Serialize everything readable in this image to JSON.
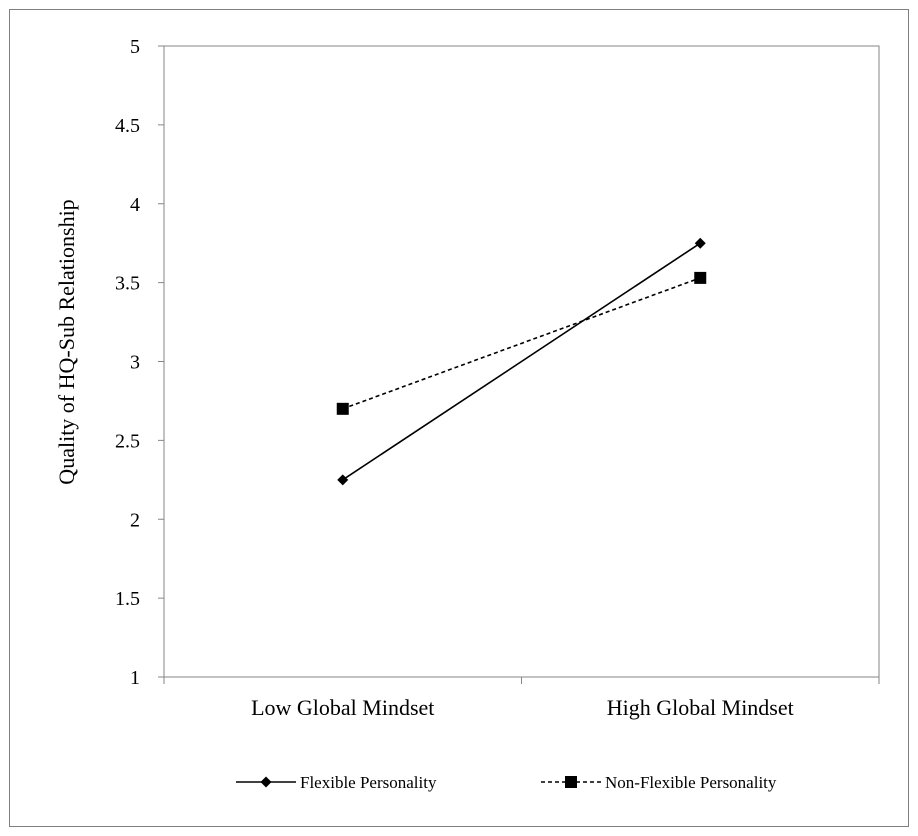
{
  "chart_data": {
    "type": "line",
    "title": "",
    "xlabel": "",
    "ylabel": "Quality of HQ-Sub Relationship",
    "categories": [
      "Low Global Mindset",
      "High Global Mindset"
    ],
    "ylim": [
      1,
      5
    ],
    "yticks": [
      1,
      1.5,
      2,
      2.5,
      3,
      3.5,
      4,
      4.5,
      5
    ],
    "grid": false,
    "legend_position": "bottom",
    "series": [
      {
        "name": "Flexible Personality",
        "values": [
          2.25,
          3.75
        ],
        "line_style": "solid",
        "marker": "diamond",
        "color": "#000000"
      },
      {
        "name": "Non-Flexible Personality",
        "values": [
          2.7,
          3.53
        ],
        "line_style": "dashed",
        "marker": "square",
        "color": "#000000"
      }
    ]
  }
}
